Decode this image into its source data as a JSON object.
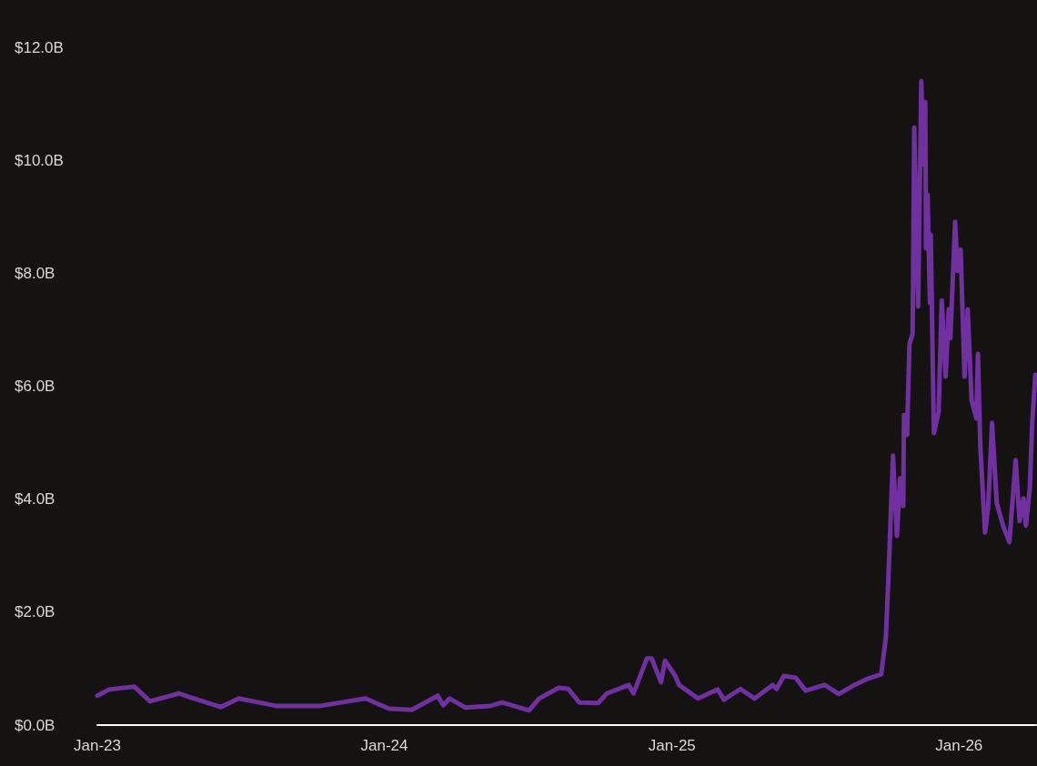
{
  "chart_data": {
    "type": "line",
    "x": [
      "2023-01-01",
      "2023-01-16",
      "2023-02-17",
      "2023-03-09",
      "2023-04-15",
      "2023-04-27",
      "2023-06-07",
      "2023-06-30",
      "2023-08-16",
      "2023-10-12",
      "2023-12-08",
      "2024-01-07",
      "2024-02-05",
      "2024-03-09",
      "2024-03-16",
      "2024-03-24",
      "2024-04-13",
      "2024-05-15",
      "2024-05-30",
      "2024-07-03",
      "2024-07-16",
      "2024-08-10",
      "2024-08-22",
      "2024-09-05",
      "2024-09-29",
      "2024-10-10",
      "2024-11-07",
      "2024-11-13",
      "2024-11-30",
      "2024-12-06",
      "2024-12-18",
      "2024-12-23",
      "2025-01-05",
      "2025-01-10",
      "2025-02-03",
      "2025-02-28",
      "2025-03-08",
      "2025-03-29",
      "2025-04-16",
      "2025-05-09",
      "2025-05-14",
      "2025-05-23",
      "2025-06-07",
      "2025-06-20",
      "2025-07-14",
      "2025-08-01",
      "2025-08-21",
      "2025-09-05",
      "2025-09-24",
      "2025-09-30",
      "2025-10-04",
      "2025-10-09",
      "2025-10-14",
      "2025-10-18",
      "2025-10-22",
      "2025-10-23",
      "2025-10-27",
      "2025-10-28",
      "2025-10-30",
      "2025-11-03",
      "2025-11-05",
      "2025-11-10",
      "2025-11-14",
      "2025-11-17",
      "2025-11-19",
      "2025-11-20",
      "2025-11-22",
      "2025-11-25",
      "2025-11-26",
      "2025-11-30",
      "2025-12-06",
      "2025-12-10",
      "2025-12-15",
      "2025-12-19",
      "2025-12-21",
      "2025-12-27",
      "2025-12-30",
      "2026-01-03",
      "2026-01-08",
      "2026-01-12",
      "2026-01-17",
      "2026-01-23",
      "2026-01-25",
      "2026-01-28",
      "2026-02-03",
      "2026-02-07",
      "2026-02-12",
      "2026-02-18",
      "2026-02-26",
      "2026-03-06",
      "2026-03-14",
      "2026-03-19",
      "2026-03-24",
      "2026-03-27",
      "2026-04-01",
      "2026-04-04",
      "2026-04-08"
    ],
    "series": [
      {
        "color": "#7030a0",
        "values": [
          0.52,
          0.63,
          0.68,
          0.42,
          0.56,
          0.5,
          0.32,
          0.47,
          0.34,
          0.34,
          0.47,
          0.29,
          0.27,
          0.52,
          0.35,
          0.47,
          0.31,
          0.34,
          0.4,
          0.26,
          0.47,
          0.66,
          0.64,
          0.4,
          0.39,
          0.56,
          0.71,
          0.56,
          1.18,
          1.18,
          0.76,
          1.14,
          0.87,
          0.71,
          0.47,
          0.63,
          0.45,
          0.64,
          0.47,
          0.71,
          0.64,
          0.87,
          0.84,
          0.61,
          0.71,
          0.55,
          0.71,
          0.81,
          0.9,
          1.56,
          2.9,
          4.77,
          3.35,
          4.37,
          3.88,
          5.49,
          5.14,
          5.75,
          6.75,
          6.93,
          10.58,
          7.41,
          11.4,
          9.92,
          11.03,
          8.44,
          9.39,
          7.47,
          8.68,
          5.17,
          5.54,
          7.52,
          6.17,
          7.36,
          6.85,
          8.91,
          8.04,
          8.42,
          6.17,
          7.36,
          5.75,
          5.43,
          6.57,
          4.96,
          3.41,
          3.85,
          5.35,
          3.93,
          3.53,
          3.24,
          4.69,
          3.61,
          4.01,
          3.53,
          4.19,
          5.32,
          6.2
        ]
      }
    ],
    "xlim": [
      "2023-01-01",
      "2026-04-09"
    ],
    "xticks": [
      {
        "value": "2023-01-01",
        "label": "Jan-23"
      },
      {
        "value": "2024-01-01",
        "label": "Jan-24"
      },
      {
        "value": "2025-01-01",
        "label": "Jan-25"
      },
      {
        "value": "2026-01-01",
        "label": "Jan-26"
      }
    ],
    "ylim": [
      0,
      12
    ],
    "yticks": [
      {
        "value": 0,
        "label": "$0.0B"
      },
      {
        "value": 2,
        "label": "$2.0B"
      },
      {
        "value": 4,
        "label": "$4.0B"
      },
      {
        "value": 6,
        "label": "$6.0B"
      },
      {
        "value": 8,
        "label": "$8.0B"
      },
      {
        "value": 10,
        "label": "$10.0B"
      },
      {
        "value": 12,
        "label": "$12.0B"
      }
    ],
    "grid": false,
    "marker": "none",
    "line_style": "solid"
  }
}
